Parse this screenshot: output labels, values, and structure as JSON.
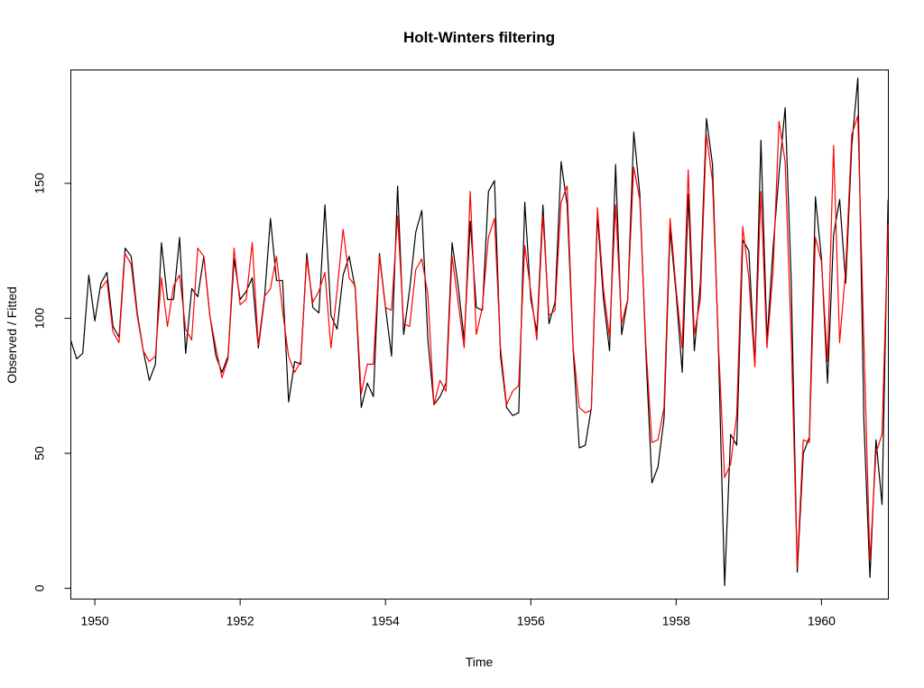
{
  "chart_data": {
    "type": "line",
    "title": "Holt-Winters filtering",
    "xlabel": "Time",
    "ylabel": "Observed / Fitted",
    "xlim": [
      1949.67,
      1960.92
    ],
    "ylim": [
      -4,
      192
    ],
    "x_ticks": [
      "1950",
      "1952",
      "1954",
      "1956",
      "1958",
      "1960"
    ],
    "y_ticks": [
      "0",
      "50",
      "100",
      "150"
    ],
    "x_start": 1949.667,
    "x_step": 0.08333,
    "series": [
      {
        "color": "#000000",
        "values": [
          92,
          85,
          87,
          116,
          99,
          113,
          117,
          97,
          93,
          126,
          123,
          102,
          88,
          77,
          83,
          128,
          107,
          107,
          130,
          87,
          111,
          108,
          123,
          101,
          86,
          80,
          86,
          122,
          107,
          110,
          115,
          89,
          107,
          137,
          114,
          114,
          69,
          84,
          83,
          124,
          104,
          102,
          142,
          101,
          96,
          116,
          123,
          111,
          67,
          76,
          71,
          124,
          104,
          86,
          149,
          94,
          111,
          132,
          140,
          92,
          68,
          71,
          76,
          128,
          112,
          92,
          136,
          104,
          103,
          147,
          151,
          86,
          67,
          64,
          65,
          143,
          107,
          95,
          142,
          98,
          106,
          158,
          142,
          88,
          52,
          53,
          67,
          138,
          107,
          88,
          157,
          94,
          107,
          169,
          146,
          87,
          39,
          45,
          63,
          133,
          109,
          80,
          146,
          88,
          113,
          174,
          157,
          87,
          1,
          57,
          53,
          129,
          125,
          83,
          166,
          92,
          126,
          154,
          178,
          114,
          6,
          50,
          56,
          145,
          122,
          76,
          131,
          144,
          113,
          164,
          189,
          62,
          4,
          55,
          31,
          144
        ]
      },
      {
        "color": "#ff0000",
        "x_start": 1950.083,
        "values": [
          111,
          114,
          95,
          91,
          124,
          120,
          101,
          88,
          84,
          86,
          115,
          97,
          112,
          116,
          96,
          92,
          126,
          123,
          101,
          89,
          78,
          85,
          126,
          105,
          107,
          128,
          90,
          108,
          111,
          123,
          103,
          86,
          80,
          84,
          122,
          106,
          110,
          117,
          89,
          110,
          133,
          115,
          112,
          72,
          83,
          83,
          123,
          104,
          103,
          138,
          98,
          97,
          118,
          122,
          109,
          68,
          77,
          73,
          123,
          106,
          89,
          147,
          94,
          104,
          130,
          137,
          89,
          68,
          73,
          75,
          127,
          110,
          92,
          138,
          101,
          103,
          143,
          149,
          89,
          67,
          65,
          66,
          141,
          111,
          93,
          142,
          98,
          107,
          156,
          144,
          90,
          54,
          55,
          67,
          137,
          111,
          89,
          155,
          94,
          107,
          168,
          151,
          90,
          41,
          46,
          64,
          134,
          115,
          82,
          147,
          89,
          117,
          173,
          158,
          93,
          8,
          55,
          54,
          130,
          121,
          84,
          164,
          91,
          118,
          168,
          175,
          92,
          10,
          50,
          57,
          135
        ]
      }
    ]
  }
}
